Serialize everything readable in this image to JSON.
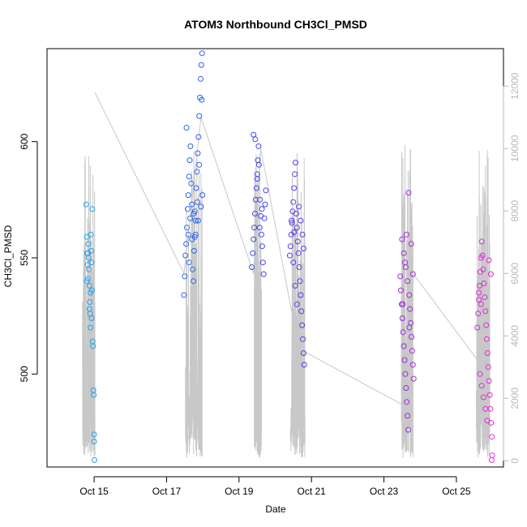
{
  "chart_data": {
    "type": "scatter",
    "title": "ATOM3 Northbound CH3Cl_PMSD",
    "xlabel": "Date",
    "ylabel": "CH3Cl_PMSD",
    "x_ticks": [
      "Oct 15",
      "Oct 17",
      "Oct 19",
      "Oct 21",
      "Oct 23",
      "Oct 25"
    ],
    "x_tick_days": [
      15,
      17,
      19,
      21,
      23,
      25
    ],
    "xlim_days": [
      13.7,
      26.3
    ],
    "ylim": [
      460,
      640
    ],
    "y_ticks": [
      500,
      550,
      600
    ],
    "secondary_axis": {
      "ylim": [
        -200,
        13200
      ],
      "ticks": [
        0,
        2000,
        4000,
        6000,
        8000,
        10000,
        12000
      ],
      "color": "#b8b8b8"
    },
    "colors": {
      "frame": "#000000",
      "altitude_line": "#c8c8c8",
      "point_start": "#27a6e6",
      "point_mid": "#2a55ee",
      "point_purple": "#7a2ae6",
      "point_end": "#e62ad6"
    },
    "series": [
      {
        "values": [
          [
            14.78,
            573
          ],
          [
            14.8,
            559
          ],
          [
            14.81,
            552
          ],
          [
            14.82,
            547
          ],
          [
            14.83,
            541
          ],
          [
            14.84,
            556
          ],
          [
            14.85,
            550
          ],
          [
            14.86,
            545
          ],
          [
            14.87,
            538
          ],
          [
            14.88,
            531
          ],
          [
            14.89,
            526
          ],
          [
            14.9,
            520
          ],
          [
            14.91,
            560
          ],
          [
            14.92,
            553
          ],
          [
            14.93,
            548
          ],
          [
            14.94,
            536
          ],
          [
            14.95,
            571
          ],
          [
            14.96,
            514
          ],
          [
            14.97,
            512
          ],
          [
            14.98,
            493
          ],
          [
            14.99,
            491
          ],
          [
            15.0,
            474
          ],
          [
            15.0,
            471
          ],
          [
            15.01,
            463
          ],
          [
            14.87,
            528
          ],
          [
            14.9,
            535
          ],
          [
            14.8,
            540
          ],
          [
            14.83,
            552
          ],
          [
            14.93,
            524
          ]
        ]
      },
      {
        "values": [
          [
            17.48,
            534
          ],
          [
            17.5,
            542
          ],
          [
            17.52,
            551
          ],
          [
            17.54,
            556
          ],
          [
            17.56,
            563
          ],
          [
            17.58,
            571
          ],
          [
            17.6,
            577
          ],
          [
            17.62,
            585
          ],
          [
            17.64,
            592
          ],
          [
            17.66,
            598
          ],
          [
            17.55,
            606
          ],
          [
            17.6,
            560
          ],
          [
            17.65,
            567
          ],
          [
            17.7,
            573
          ],
          [
            17.72,
            545
          ],
          [
            17.74,
            540
          ],
          [
            17.76,
            553
          ],
          [
            17.78,
            559
          ],
          [
            17.8,
            566
          ],
          [
            17.82,
            580
          ],
          [
            17.84,
            587
          ],
          [
            17.86,
            595
          ],
          [
            17.88,
            602
          ],
          [
            17.9,
            611
          ],
          [
            17.92,
            619
          ],
          [
            17.94,
            627
          ],
          [
            17.96,
            633
          ],
          [
            17.98,
            638
          ],
          [
            17.97,
            618
          ],
          [
            17.9,
            590
          ],
          [
            17.85,
            574
          ],
          [
            17.75,
            569
          ],
          [
            17.7,
            558
          ],
          [
            17.62,
            548
          ],
          [
            17.8,
            560
          ],
          [
            17.87,
            566
          ],
          [
            17.95,
            572
          ],
          [
            17.99,
            577
          ],
          [
            17.68,
            582
          ],
          [
            17.78,
            570
          ]
        ]
      },
      {
        "values": [
          [
            19.35,
            546
          ],
          [
            19.38,
            552
          ],
          [
            19.4,
            558
          ],
          [
            19.42,
            563
          ],
          [
            19.44,
            569
          ],
          [
            19.46,
            575
          ],
          [
            19.48,
            580
          ],
          [
            19.5,
            586
          ],
          [
            19.52,
            592
          ],
          [
            19.54,
            598
          ],
          [
            19.4,
            603
          ],
          [
            19.45,
            601
          ],
          [
            19.55,
            590
          ],
          [
            19.58,
            575
          ],
          [
            19.6,
            568
          ],
          [
            19.62,
            560
          ],
          [
            19.64,
            555
          ],
          [
            19.66,
            548
          ],
          [
            19.68,
            543
          ],
          [
            19.7,
            567
          ],
          [
            19.72,
            573
          ],
          [
            19.74,
            579
          ],
          [
            19.5,
            584
          ],
          [
            19.57,
            563
          ],
          [
            19.63,
            571
          ]
        ]
      },
      {
        "values": [
          [
            20.4,
            551
          ],
          [
            20.42,
            555
          ],
          [
            20.44,
            560
          ],
          [
            20.46,
            565
          ],
          [
            20.48,
            570
          ],
          [
            20.5,
            574
          ],
          [
            20.52,
            580
          ],
          [
            20.54,
            586
          ],
          [
            20.56,
            591
          ],
          [
            20.58,
            569
          ],
          [
            20.6,
            563
          ],
          [
            20.62,
            557
          ],
          [
            20.64,
            552
          ],
          [
            20.66,
            546
          ],
          [
            20.68,
            540
          ],
          [
            20.7,
            534
          ],
          [
            20.72,
            527
          ],
          [
            20.74,
            521
          ],
          [
            20.76,
            515
          ],
          [
            20.78,
            509
          ],
          [
            20.8,
            504
          ],
          [
            20.5,
            548
          ],
          [
            20.55,
            538
          ],
          [
            20.6,
            530
          ],
          [
            20.65,
            572
          ],
          [
            20.7,
            566
          ],
          [
            20.75,
            560
          ],
          [
            20.78,
            554
          ],
          [
            20.45,
            566
          ],
          [
            20.52,
            561
          ]
        ]
      },
      {
        "values": [
          [
            23.45,
            542
          ],
          [
            23.47,
            536
          ],
          [
            23.49,
            530
          ],
          [
            23.51,
            524
          ],
          [
            23.53,
            518
          ],
          [
            23.55,
            512
          ],
          [
            23.57,
            506
          ],
          [
            23.59,
            500
          ],
          [
            23.61,
            494
          ],
          [
            23.63,
            488
          ],
          [
            23.65,
            482
          ],
          [
            23.67,
            476
          ],
          [
            23.5,
            558
          ],
          [
            23.55,
            552
          ],
          [
            23.6,
            546
          ],
          [
            23.65,
            540
          ],
          [
            23.7,
            534
          ],
          [
            23.72,
            528
          ],
          [
            23.74,
            522
          ],
          [
            23.76,
            516
          ],
          [
            23.78,
            510
          ],
          [
            23.8,
            504
          ],
          [
            23.82,
            498
          ],
          [
            23.68,
            578
          ],
          [
            23.62,
            560
          ],
          [
            23.58,
            548
          ],
          [
            23.75,
            556
          ],
          [
            23.8,
            543
          ],
          [
            23.52,
            530
          ],
          [
            23.7,
            520
          ]
        ]
      },
      {
        "values": [
          [
            25.58,
            520
          ],
          [
            25.6,
            526
          ],
          [
            25.62,
            532
          ],
          [
            25.64,
            538
          ],
          [
            25.66,
            544
          ],
          [
            25.68,
            550
          ],
          [
            25.7,
            557
          ],
          [
            25.72,
            551
          ],
          [
            25.74,
            545
          ],
          [
            25.76,
            539
          ],
          [
            25.78,
            533
          ],
          [
            25.8,
            527
          ],
          [
            25.82,
            521
          ],
          [
            25.84,
            515
          ],
          [
            25.86,
            509
          ],
          [
            25.88,
            503
          ],
          [
            25.9,
            497
          ],
          [
            25.92,
            491
          ],
          [
            25.94,
            485
          ],
          [
            25.96,
            479
          ],
          [
            25.98,
            473
          ],
          [
            25.99,
            465
          ],
          [
            25.97,
            463
          ],
          [
            25.65,
            500
          ],
          [
            25.7,
            495
          ],
          [
            25.75,
            490
          ],
          [
            25.8,
            485
          ],
          [
            25.85,
            480
          ],
          [
            25.9,
            549
          ],
          [
            25.95,
            543
          ],
          [
            25.62,
            535
          ],
          [
            25.68,
            530
          ]
        ]
      }
    ],
    "altitude_segments": [
      {
        "t0": 14.68,
        "t1": 15.02
      },
      {
        "t0": 17.52,
        "t1": 17.98
      },
      {
        "t0": 19.42,
        "t1": 19.62
      },
      {
        "t0": 20.42,
        "t1": 20.82
      },
      {
        "t0": 23.48,
        "t1": 23.8
      },
      {
        "t0": 25.55,
        "t1": 25.92
      }
    ],
    "altitude_path": [
      [
        15.02,
        11800
      ],
      [
        17.48,
        6000
      ],
      [
        17.95,
        11000
      ],
      [
        19.4,
        6000
      ],
      [
        19.6,
        10000
      ],
      [
        20.45,
        4800
      ],
      [
        20.8,
        3500
      ],
      [
        23.5,
        1800
      ],
      [
        23.8,
        6000
      ],
      [
        25.6,
        3200
      ]
    ]
  }
}
